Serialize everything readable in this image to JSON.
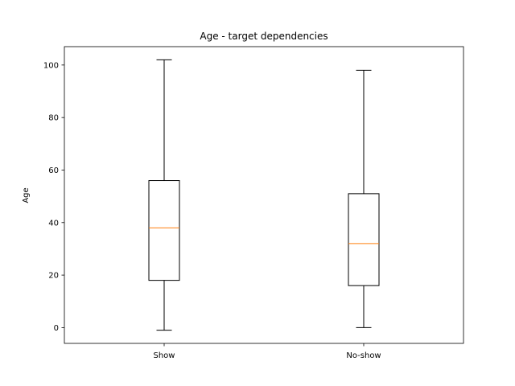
{
  "chart_data": {
    "type": "box",
    "title": "Age - target dependencies",
    "xlabel": "",
    "ylabel": "Age",
    "categories": [
      "Show",
      "No-show"
    ],
    "boxes": [
      {
        "category": "Show",
        "whisker_low": -1,
        "q1": 18,
        "median": 38,
        "q3": 56,
        "whisker_high": 102
      },
      {
        "category": "No-show",
        "whisker_low": 0,
        "q1": 16,
        "median": 32,
        "q3": 51,
        "whisker_high": 98
      }
    ],
    "ylim": [
      -6,
      107
    ],
    "yticks": [
      0,
      20,
      40,
      60,
      80,
      100
    ],
    "grid": false,
    "colors": {
      "box": "#000000",
      "median": "#ff7f0e"
    }
  }
}
